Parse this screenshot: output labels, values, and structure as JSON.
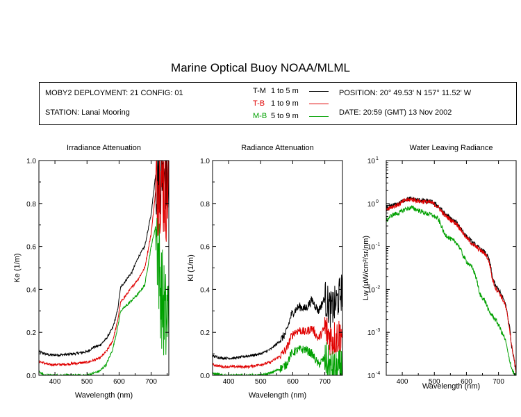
{
  "title": "Marine Optical Buoy NOAA/MLML",
  "info": {
    "deployment": "MOBY2 DEPLOYMENT: 21 CONFIG: 01",
    "station": "STATION: Lanai Mooring",
    "position": "POSITION: 20° 49.53' N   157° 11.52' W",
    "date": "DATE: 20:59 (GMT) 13 Nov 2002"
  },
  "legend": [
    {
      "code": "T-M",
      "range": "1 to 5  m",
      "color": "#000000"
    },
    {
      "code": "T-B",
      "range": "1 to 9  m",
      "color": "#e00000"
    },
    {
      "code": "M-B",
      "range": "5 to 9  m",
      "color": "#00a000"
    }
  ],
  "chart_data": [
    {
      "type": "line",
      "title": "Irradiance Attenuation",
      "xlabel": "Wavelength (nm)",
      "ylabel": "Ke  (1/m)",
      "xlim": [
        350,
        755
      ],
      "ylim": [
        0,
        1.0
      ],
      "yscale": "linear",
      "xticks": [
        400,
        500,
        600,
        700
      ],
      "yticks": [
        0.0,
        0.2,
        0.4,
        0.6,
        0.8,
        1.0
      ],
      "ytick_labels": [
        "0.0",
        "0.2",
        "0.4",
        "0.6",
        "0.8",
        "1.0"
      ],
      "noise_from": 715,
      "series": [
        {
          "name": "T-M",
          "color": "#000000",
          "x": [
            350,
            380,
            420,
            460,
            500,
            520,
            540,
            560,
            580,
            595,
            605,
            620,
            640,
            660,
            680,
            700,
            715,
            730,
            745,
            755
          ],
          "y": [
            0.11,
            0.095,
            0.095,
            0.1,
            0.11,
            0.13,
            0.14,
            0.17,
            0.22,
            0.3,
            0.41,
            0.44,
            0.48,
            0.55,
            0.6,
            0.75,
            0.95,
            1.0,
            1.0,
            1.0
          ]
        },
        {
          "name": "T-B",
          "color": "#e00000",
          "x": [
            350,
            380,
            420,
            460,
            500,
            520,
            540,
            560,
            580,
            595,
            605,
            620,
            640,
            660,
            680,
            700,
            715,
            730,
            745,
            755
          ],
          "y": [
            0.065,
            0.05,
            0.05,
            0.055,
            0.06,
            0.07,
            0.08,
            0.11,
            0.16,
            0.25,
            0.34,
            0.37,
            0.41,
            0.45,
            0.5,
            0.66,
            0.87,
            0.92,
            0.85,
            0.9
          ]
        },
        {
          "name": "M-B",
          "color": "#00a000",
          "x": [
            350,
            365,
            380,
            420,
            460,
            500,
            520,
            540,
            560,
            580,
            595,
            605,
            620,
            640,
            660,
            680,
            700,
            715,
            730,
            745,
            755
          ],
          "y": [
            0.02,
            0.0,
            0.0,
            0.0,
            0.0,
            0.0,
            0.01,
            0.02,
            0.05,
            0.12,
            0.22,
            0.3,
            0.32,
            0.35,
            0.38,
            0.42,
            0.6,
            0.7,
            0.4,
            0.25,
            0.3
          ]
        }
      ]
    },
    {
      "type": "line",
      "title": "Radiance Attenuation",
      "xlabel": "Wavelength (nm)",
      "ylabel": "Kl  (1/m)",
      "xlim": [
        350,
        755
      ],
      "ylim": [
        0,
        1.0
      ],
      "yscale": "linear",
      "xticks": [
        400,
        500,
        600,
        700
      ],
      "yticks": [
        0.0,
        0.2,
        0.4,
        0.6,
        0.8,
        1.0
      ],
      "ytick_labels": [
        "0.0",
        "0.2",
        "0.4",
        "0.6",
        "0.8",
        "1.0"
      ],
      "noise_from": 700,
      "series": [
        {
          "name": "T-M",
          "color": "#000000",
          "x": [
            350,
            380,
            420,
            460,
            500,
            530,
            560,
            580,
            595,
            605,
            620,
            640,
            660,
            680,
            700,
            720,
            740,
            755
          ],
          "y": [
            0.09,
            0.08,
            0.08,
            0.09,
            0.1,
            0.12,
            0.16,
            0.2,
            0.28,
            0.3,
            0.32,
            0.31,
            0.35,
            0.3,
            0.36,
            0.3,
            0.35,
            0.4
          ]
        },
        {
          "name": "T-B",
          "color": "#e00000",
          "x": [
            350,
            380,
            420,
            460,
            500,
            530,
            560,
            580,
            595,
            605,
            620,
            640,
            660,
            680,
            700,
            720,
            740,
            755
          ],
          "y": [
            0.05,
            0.04,
            0.04,
            0.04,
            0.05,
            0.06,
            0.09,
            0.12,
            0.18,
            0.2,
            0.21,
            0.2,
            0.22,
            0.17,
            0.22,
            0.17,
            0.18,
            0.2
          ]
        },
        {
          "name": "M-B",
          "color": "#00a000",
          "x": [
            350,
            380,
            420,
            460,
            500,
            530,
            560,
            580,
            595,
            605,
            620,
            640,
            660,
            680,
            700,
            720,
            740,
            755
          ],
          "y": [
            0.01,
            0.0,
            0.0,
            0.0,
            0.0,
            0.01,
            0.03,
            0.05,
            0.1,
            0.11,
            0.12,
            0.12,
            0.1,
            0.05,
            0.08,
            0.03,
            0.02,
            0.05
          ]
        }
      ]
    },
    {
      "type": "line",
      "title": "Water Leaving Radiance",
      "xlabel": "Wavelength (nm)",
      "ylabel": "Lw  (µW/cm²/sr/nm)",
      "xlim": [
        350,
        755
      ],
      "ylim": [
        0.0001,
        10
      ],
      "yscale": "log",
      "xticks": [
        400,
        500,
        600,
        700
      ],
      "yticks": [
        0.0001,
        0.001,
        0.01,
        0.1,
        1,
        10
      ],
      "ytick_labels": [
        "10⁻⁴",
        "10⁻³",
        "10⁻²",
        "10⁻¹",
        "10⁰",
        "10¹"
      ],
      "noise_from": 0,
      "series": [
        {
          "name": "T-M",
          "color": "#000000",
          "x": [
            350,
            370,
            390,
            410,
            430,
            450,
            470,
            490,
            510,
            530,
            550,
            570,
            590,
            600,
            620,
            640,
            660,
            670,
            680,
            690,
            700,
            710,
            720,
            730,
            740,
            750,
            755
          ],
          "y": [
            0.8,
            0.9,
            1.0,
            1.25,
            1.3,
            1.2,
            1.15,
            1.1,
            0.9,
            0.6,
            0.45,
            0.35,
            0.22,
            0.17,
            0.12,
            0.09,
            0.07,
            0.05,
            0.02,
            0.012,
            0.01,
            0.007,
            0.005,
            0.002,
            0.0005,
            0.0002,
            0.0001
          ]
        },
        {
          "name": "T-B",
          "color": "#e00000",
          "x": [
            350,
            370,
            390,
            410,
            430,
            450,
            470,
            490,
            510,
            530,
            550,
            570,
            590,
            600,
            620,
            640,
            660,
            670,
            680,
            690,
            700,
            710,
            720,
            730,
            740,
            750,
            755
          ],
          "y": [
            0.75,
            0.85,
            0.95,
            1.2,
            1.25,
            1.15,
            1.1,
            1.05,
            0.85,
            0.55,
            0.42,
            0.33,
            0.2,
            0.16,
            0.11,
            0.085,
            0.065,
            0.045,
            0.018,
            0.011,
            0.009,
            0.0065,
            0.0045,
            0.0018,
            0.0005,
            0.0002,
            0.0001
          ]
        },
        {
          "name": "M-B",
          "color": "#00a000",
          "x": [
            350,
            370,
            390,
            410,
            430,
            450,
            470,
            490,
            510,
            530,
            550,
            570,
            590,
            600,
            620,
            640,
            660,
            670,
            680,
            690,
            700,
            710,
            720,
            730,
            740,
            750,
            755
          ],
          "y": [
            0.4,
            0.55,
            0.6,
            0.75,
            0.8,
            0.7,
            0.6,
            0.55,
            0.45,
            0.2,
            0.15,
            0.12,
            0.06,
            0.045,
            0.03,
            0.008,
            0.005,
            0.003,
            0.0025,
            0.002,
            0.0015,
            0.001,
            0.0007,
            0.0003,
            0.00015,
            0.0001,
            0.0001
          ]
        }
      ]
    }
  ]
}
